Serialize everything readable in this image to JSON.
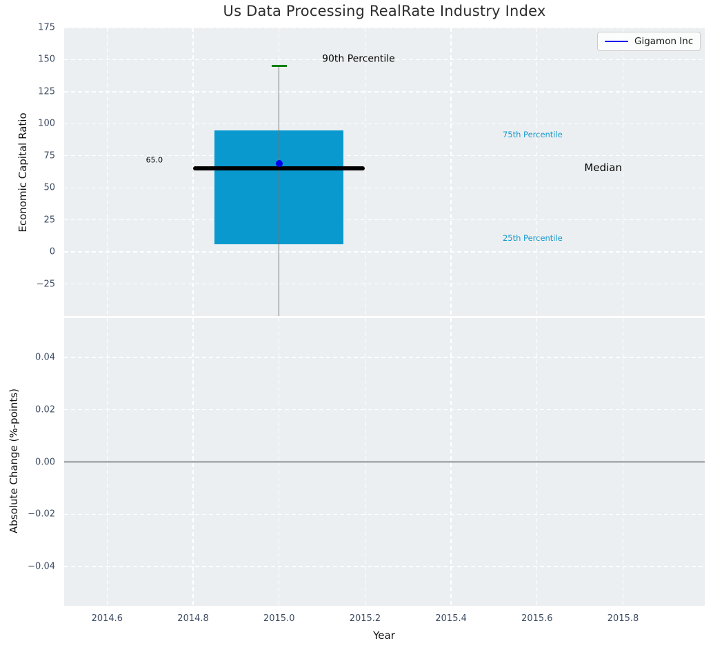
{
  "legend": {
    "label": "Gigamon Inc",
    "line_color": "#0000ee",
    "position": "upper right"
  },
  "colors": {
    "figure_bg": "#ffffff",
    "plot_bg": "#eceff1",
    "grid": "#ffffff",
    "box_fill": "#0999ce",
    "percentile_cap_green": "#008000",
    "whisker": "#737373",
    "median_line": "#000000",
    "company_marker": "#0000ee",
    "zero_line": "#000000",
    "tick_label": "#3d4c63",
    "axis_label": "#111111",
    "title": "#2d2d2d",
    "annotation_cyan": "#1699cd"
  },
  "chart_data": [
    {
      "type": "box",
      "title": "Us Data Processing RealRate Industry Index",
      "ylabel": "Economic Capital Ratio",
      "ylim": [
        -50,
        175
      ],
      "xlim": [
        2014.5,
        2015.99
      ],
      "grid": true,
      "yticks": [
        {
          "v": 175,
          "label": "175"
        },
        {
          "v": 150,
          "label": "150"
        },
        {
          "v": 125,
          "label": "125"
        },
        {
          "v": 100,
          "label": "100"
        },
        {
          "v": 75,
          "label": "75"
        },
        {
          "v": 50,
          "label": "50"
        },
        {
          "v": 25,
          "label": "25"
        },
        {
          "v": 0,
          "label": "0"
        },
        {
          "v": -25,
          "label": "−25"
        }
      ],
      "xgrid": [
        2014.6,
        2014.8,
        2015.0,
        2015.2,
        2015.4,
        2015.6,
        2015.8
      ],
      "box": {
        "x_center": 2015.0,
        "x_left": 2014.85,
        "x_right": 2015.15,
        "q25": 6,
        "median": 65,
        "q75": 95,
        "p90": 145,
        "median_line_x": [
          2014.8,
          2015.2
        ],
        "cap_x": [
          2014.982,
          2015.018
        ],
        "whisker_lower_clipped_below_axis": true
      },
      "series_point": {
        "name": "Gigamon Inc",
        "x": 2015.0,
        "y": 69
      },
      "annotations": [
        {
          "text": "90th Percentile",
          "x": 2015.1,
          "y": 150,
          "anchor": "left",
          "color": "#000000",
          "fs": 14
        },
        {
          "text": "65.0",
          "x": 2014.71,
          "y": 71.5,
          "anchor": "center",
          "color": "#000000",
          "fs": 11
        },
        {
          "text": "75th Percentile",
          "x": 2015.52,
          "y": 91,
          "anchor": "left",
          "color": "#1699cd",
          "fs": 11.5
        },
        {
          "text": "Median",
          "x": 2015.71,
          "y": 65.5,
          "anchor": "left",
          "color": "#000000",
          "fs": 15
        },
        {
          "text": "25th Percentile",
          "x": 2015.52,
          "y": 10.5,
          "anchor": "left",
          "color": "#1699cd",
          "fs": 11.5
        }
      ]
    },
    {
      "type": "line",
      "ylabel": "Absolute Change (%-points)",
      "xlabel": "Year",
      "ylim": [
        -0.055,
        0.055
      ],
      "xlim": [
        2014.5,
        2015.99
      ],
      "grid": true,
      "zero_line": 0.0,
      "yticks": [
        {
          "v": 0.04,
          "label": "0.04"
        },
        {
          "v": 0.02,
          "label": "0.02"
        },
        {
          "v": 0.0,
          "label": "0.00"
        },
        {
          "v": -0.02,
          "label": "−0.02"
        },
        {
          "v": -0.04,
          "label": "−0.04"
        }
      ],
      "xticks": [
        {
          "v": 2014.6,
          "label": "2014.6"
        },
        {
          "v": 2014.8,
          "label": "2014.8"
        },
        {
          "v": 2015.0,
          "label": "2015.0"
        },
        {
          "v": 2015.2,
          "label": "2015.2"
        },
        {
          "v": 2015.4,
          "label": "2015.4"
        },
        {
          "v": 2015.6,
          "label": "2015.6"
        },
        {
          "v": 2015.8,
          "label": "2015.8"
        }
      ]
    }
  ]
}
